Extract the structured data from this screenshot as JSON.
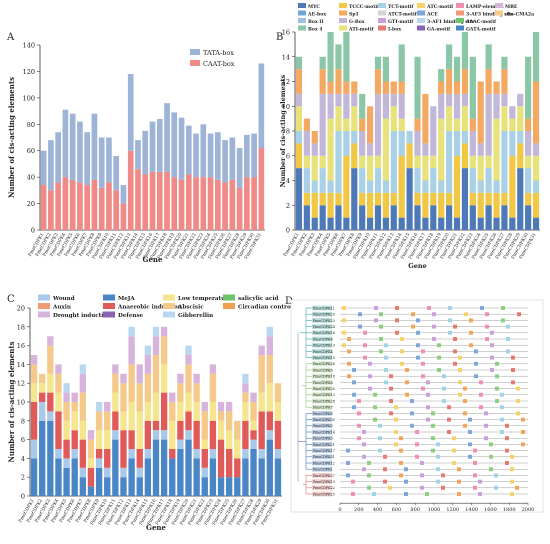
{
  "chart_data": [
    {
      "panel": "A",
      "type": "bar",
      "stacked": true,
      "xlabel": "Gene",
      "ylabel": "Number of cis-acting elements",
      "ylim": [
        0,
        140
      ],
      "yticks": [
        0,
        20,
        40,
        60,
        80,
        100,
        120,
        140
      ],
      "categories": [
        "PmeCDPK1",
        "PmeCDPK2",
        "PmeCDPK3",
        "PmeCDPK4",
        "PmeCDPK5",
        "PmeCDPK6",
        "PmeCDPK7",
        "PmeCDPK8",
        "PmeCDPK9",
        "PmeCDPK10",
        "PmeCDPK11",
        "PmeCDPK12",
        "PmeCDPK13",
        "PmeCDPK14",
        "PmeCDPK15",
        "PmeCDPK16",
        "PmeCDPK17",
        "PmeCDPK18",
        "PmeCDPK19",
        "PmeCDPK20",
        "PmeCDPK21",
        "PmeCDPK22",
        "PmeCDPK23",
        "PmeCDPK24",
        "PmeCDPK25",
        "PmeCDPK26",
        "PmeCDPK27",
        "PmeCDPK28",
        "PmeCDPK29",
        "PmeCDPK30",
        "PmeCDPK31"
      ],
      "legend": [
        "TATA-box",
        "CAAT-box"
      ],
      "colors": {
        "TATA-box": "#9db3d8",
        "CAAT-box": "#f08a87"
      },
      "series": [
        {
          "name": "CAAT-box",
          "values": [
            34,
            30,
            36,
            40,
            38,
            36,
            34,
            38,
            32,
            36,
            30,
            20,
            60,
            46,
            42,
            44,
            44,
            44,
            40,
            38,
            42,
            40,
            40,
            40,
            38,
            36,
            38,
            32,
            40,
            40,
            62
          ]
        },
        {
          "name": "TATA-box",
          "values": [
            26,
            38,
            38,
            51,
            50,
            46,
            40,
            50,
            38,
            34,
            26,
            14,
            58,
            22,
            33,
            38,
            40,
            52,
            49,
            47,
            37,
            33,
            40,
            33,
            36,
            32,
            32,
            30,
            32,
            33,
            64
          ]
        }
      ]
    },
    {
      "panel": "B",
      "type": "bar",
      "stacked": true,
      "xlabel": "Gene",
      "ylabel": "Number of cis-acting elements",
      "ylim": [
        0,
        16
      ],
      "yticks": [
        0,
        2,
        4,
        6,
        8,
        10,
        12,
        14,
        16
      ],
      "categories": [
        "PmeCDPK1",
        "PmeCDPK2",
        "PmeCDPK3",
        "PmeCDPK4",
        "PmeCDPK5",
        "PmeCDPK6",
        "PmeCDPK7",
        "PmeCDPK8",
        "PmeCDPK9",
        "PmeCDPK10",
        "PmeCDPK11",
        "PmeCDPK12",
        "PmeCDPK13",
        "PmeCDPK14",
        "PmeCDPK15",
        "PmeCDPK16",
        "PmeCDPK17",
        "PmeCDPK18",
        "PmeCDPK19",
        "PmeCDPK20",
        "PmeCDPK21",
        "PmeCDPK22",
        "PmeCDPK23",
        "PmeCDPK24",
        "PmeCDPK25",
        "PmeCDPK26",
        "PmeCDPK27",
        "PmeCDPK28",
        "PmeCDPK29",
        "PmeCDPK30",
        "PmeCDPK31"
      ],
      "legend": [
        "MYC",
        "AE-box",
        "Box II",
        "Box 4",
        "TCCC-motif",
        "Sp1",
        "G-Box",
        "ATI-motif",
        "TCT-motif",
        "ATCT-motif",
        "GTI-motif",
        "I-box",
        "ATC-motif",
        "ACE",
        "3-AF1 binding site",
        "GA-motif",
        "LAMP-element",
        "3-AF3 binding site",
        "AAAC-motif",
        "GATA-motif",
        "MRE",
        "chs-CMA2a"
      ],
      "totals": [
        14,
        9,
        8,
        14,
        16,
        15,
        16,
        12,
        11,
        10,
        14,
        14,
        12,
        15,
        8,
        14,
        11,
        10,
        13,
        15,
        14,
        16,
        14,
        12,
        15,
        12,
        14,
        10,
        11,
        14,
        16
      ],
      "segment_colors": [
        "#4e79b8",
        "#f2c744",
        "#a8d0e6",
        "#e8e27a",
        "#c2b6d9",
        "#f4a962",
        "#8bc6a7"
      ]
    },
    {
      "panel": "C",
      "type": "bar",
      "stacked": true,
      "xlabel": "Gene",
      "ylabel": "Number of cis-acting elements",
      "ylim": [
        0,
        20
      ],
      "yticks": [
        0,
        2,
        4,
        6,
        8,
        10,
        12,
        14,
        16,
        18,
        20
      ],
      "categories": [
        "PmeCDPK1",
        "PmeCDPK2",
        "PmeCDPK3",
        "PmeCDPK4",
        "PmeCDPK5",
        "PmeCDPK6",
        "PmeCDPK7",
        "PmeCDPK8",
        "PmeCDPK9",
        "PmeCDPK10",
        "PmeCDPK11",
        "PmeCDPK12",
        "PmeCDPK13",
        "PmeCDPK14",
        "PmeCDPK15",
        "PmeCDPK16",
        "PmeCDPK17",
        "PmeCDPK18",
        "PmeCDPK19",
        "PmeCDPK20",
        "PmeCDPK21",
        "PmeCDPK22",
        "PmeCDPK23",
        "PmeCDPK24",
        "PmeCDPK25",
        "PmeCDPK26",
        "PmeCDPK27",
        "PmeCDPK28",
        "PmeCDPK29",
        "PmeCDPK30",
        "PmeCDPK31"
      ],
      "legend": [
        "Wound",
        "Auxin",
        "Drought induction",
        "MeJA",
        "Anaerobic induction",
        "Defense",
        "Low temperature",
        "Abscisic",
        "Gibberellin",
        "salicylic acid",
        "Circadian control"
      ],
      "colors": {
        "MeJA": "#4a86c5",
        "Wound": "#a9c9e8",
        "Anaerobic induction": "#e05a5a",
        "Low temperature": "#f5e58e",
        "Abscisic": "#f5c98a",
        "Gibberellin": "#b9d8f0",
        "Drought induction": "#d8b4dc",
        "Auxin": "#f29a76",
        "Defense": "#8a63b5",
        "salicylic acid": "#6cc36b",
        "Circadian control": "#f0a050"
      },
      "series": [
        {
          "name": "MeJA",
          "values": [
            4,
            8,
            8,
            4,
            3,
            4,
            2,
            1,
            3,
            2,
            6,
            2,
            4,
            2,
            4,
            6,
            6,
            4,
            5,
            6,
            4,
            2,
            4,
            2,
            2,
            2,
            4,
            5,
            4,
            6,
            4
          ]
        },
        {
          "name": "Wound",
          "values": [
            2,
            2,
            1,
            1,
            1,
            1,
            1,
            0,
            1,
            1,
            1,
            1,
            1,
            1,
            1,
            1,
            1,
            0,
            1,
            1,
            1,
            1,
            1,
            0,
            0,
            0,
            1,
            1,
            1,
            1,
            1
          ]
        },
        {
          "name": "Anaerobic induction",
          "values": [
            4,
            1,
            2,
            4,
            2,
            2,
            3,
            2,
            1,
            2,
            2,
            4,
            2,
            2,
            3,
            1,
            4,
            1,
            2,
            2,
            3,
            2,
            3,
            4,
            3,
            2,
            3,
            1,
            4,
            2,
            3
          ]
        },
        {
          "name": "Low temperature",
          "values": [
            2,
            1,
            2,
            2,
            2,
            2,
            2,
            1,
            2,
            2,
            2,
            2,
            3,
            4,
            2,
            3,
            3,
            3,
            2,
            2,
            2,
            1,
            2,
            2,
            2,
            2,
            2,
            1,
            2,
            3,
            2
          ]
        },
        {
          "name": "Abscisic",
          "values": [
            2,
            1,
            3,
            2,
            2,
            1,
            3,
            2,
            2,
            2,
            2,
            3,
            4,
            3,
            3,
            4,
            3,
            2,
            2,
            3,
            2,
            3,
            3,
            1,
            2,
            2,
            1,
            2,
            4,
            3,
            2
          ]
        },
        {
          "name": "Drought induction",
          "values": [
            1,
            0,
            1,
            1,
            1,
            1,
            2,
            1,
            0,
            1,
            1,
            1,
            3,
            2,
            2,
            2,
            1,
            1,
            1,
            1,
            1,
            1,
            1,
            1,
            1,
            0,
            1,
            1,
            1,
            2,
            0
          ]
        },
        {
          "name": "Gibberellin",
          "values": [
            0,
            0,
            0,
            0,
            1,
            0,
            1,
            0,
            1,
            0,
            0,
            0,
            1,
            0,
            1,
            1,
            0,
            0,
            0,
            1,
            0,
            0,
            0,
            0,
            0,
            0,
            1,
            0,
            0,
            1,
            0
          ]
        }
      ]
    },
    {
      "panel": "D",
      "type": "diagram",
      "xticks": [
        0,
        200,
        400,
        600,
        800,
        1000,
        1200,
        1400,
        1600,
        1800,
        2000
      ],
      "xlim": [
        0,
        2000
      ],
      "gene_labels": [
        "PmeCDPK11",
        "PmeCDPK29",
        "PmeCDPK23",
        "PmeCDPK24",
        "PmeCDPK16",
        "PmeCDPK6",
        "PmeCDPK19",
        "PmeCDPK4",
        "PmeCDPK15",
        "PmeCDPK26",
        "PmeCDPK5",
        "PmeCDPK18",
        "PmeCDPK8",
        "PmeCDPK20",
        "PmeCDPK13",
        "PmeCDPK28",
        "PmeCDPK7",
        "PmeCDPK9",
        "PmeCDPK30",
        "PmeCDPK2",
        "PmeCDPK14",
        "PmeCDPK3",
        "PmeCDPK21",
        "PmeCDPK17",
        "PmeCDPK31",
        "PmeCDPK12",
        "PmeCDPK1",
        "PmeCDPK27",
        "PmeCDPK10",
        "PmeCDPK22",
        "PmeCDPK25"
      ],
      "clade_colors": [
        "#3aa6a0",
        "#3aa6a0",
        "#3aa6a0",
        "#3aa6a0",
        "#3aa6a0",
        "#3aa6a0",
        "#3aa6a0",
        "#3aa6a0",
        "#3aa6a0",
        "#8dc26f",
        "#8dc26f",
        "#8dc26f",
        "#8dc26f",
        "#8dc26f",
        "#8dc26f",
        "#8dc26f",
        "#8dc26f",
        "#4a78b8",
        "#4a78b8",
        "#4a78b8",
        "#4a78b8",
        "#4a78b8",
        "#4a78b8",
        "#4a78b8",
        "#4a78b8",
        "#4a78b8",
        "#4a78b8",
        "#e07070",
        "#e07070",
        "#e07070",
        "#e07070"
      ],
      "motif_colors": [
        "#f3d36a",
        "#8ccf7e",
        "#7fa6d9",
        "#e57b6f",
        "#c9a0dc",
        "#f2a65a",
        "#9fd3e6",
        "#f08fb0"
      ]
    }
  ],
  "panel_labels": {
    "a": "A",
    "b": "B",
    "c": "C",
    "d": "D"
  }
}
